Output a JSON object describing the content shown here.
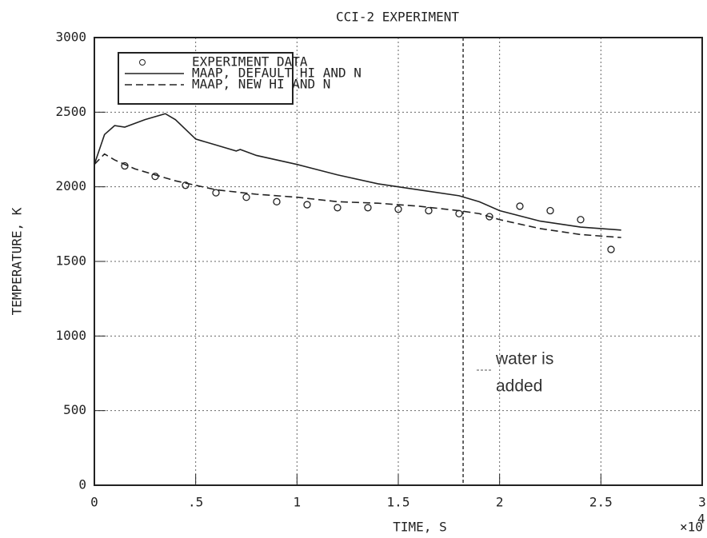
{
  "chart_data": {
    "type": "line",
    "title": "CCI-2 EXPERIMENT",
    "xlabel": "TIME, S",
    "ylabel": "TEMPERATURE, K",
    "x_multiplier": "×10",
    "x_exponent": "4",
    "xlim": [
      0,
      3
    ],
    "ylim": [
      0,
      3000
    ],
    "xticks": [
      0,
      {
        "value": 0.5,
        "label": ".5"
      },
      1,
      1.5,
      2,
      2.5,
      3
    ],
    "yticks": [
      0,
      500,
      1000,
      1500,
      2000,
      2500,
      3000
    ],
    "grid": true,
    "legend": "upper left",
    "series": [
      {
        "name": "EXPERIMENT DATA",
        "color": "#222222",
        "style": "marker",
        "x": [
          0.15,
          0.3,
          0.45,
          0.6,
          0.75,
          0.9,
          1.05,
          1.2,
          1.35,
          1.5,
          1.65,
          1.8,
          1.95,
          2.1,
          2.25,
          2.4,
          2.55
        ],
        "values": [
          2140,
          2070,
          2010,
          1960,
          1930,
          1900,
          1880,
          1860,
          1860,
          1850,
          1840,
          1820,
          1800,
          1870,
          1840,
          1780,
          1580
        ]
      },
      {
        "name": "MAAP, DEFAULT HI AND N",
        "color": "#222222",
        "style": "solid",
        "x": [
          0,
          0.05,
          0.1,
          0.15,
          0.25,
          0.35,
          0.4,
          0.5,
          0.6,
          0.7,
          0.72,
          0.8,
          1.0,
          1.2,
          1.4,
          1.6,
          1.8,
          1.9,
          2.0,
          2.2,
          2.4,
          2.6
        ],
        "values": [
          2150,
          2350,
          2410,
          2400,
          2450,
          2490,
          2450,
          2320,
          2280,
          2240,
          2250,
          2210,
          2150,
          2080,
          2020,
          1980,
          1940,
          1900,
          1840,
          1770,
          1730,
          1710
        ]
      },
      {
        "name": "MAAP, NEW HI AND N",
        "color": "#222222",
        "style": "dashed",
        "x": [
          0,
          0.05,
          0.1,
          0.2,
          0.4,
          0.6,
          0.8,
          1.0,
          1.2,
          1.4,
          1.6,
          1.8,
          1.9,
          2.0,
          2.2,
          2.4,
          2.6
        ],
        "values": [
          2150,
          2220,
          2180,
          2120,
          2040,
          1980,
          1950,
          1930,
          1900,
          1890,
          1870,
          1840,
          1820,
          1780,
          1720,
          1680,
          1660
        ]
      }
    ],
    "event_x": 1.82,
    "annotation": [
      "water is",
      "added"
    ]
  }
}
